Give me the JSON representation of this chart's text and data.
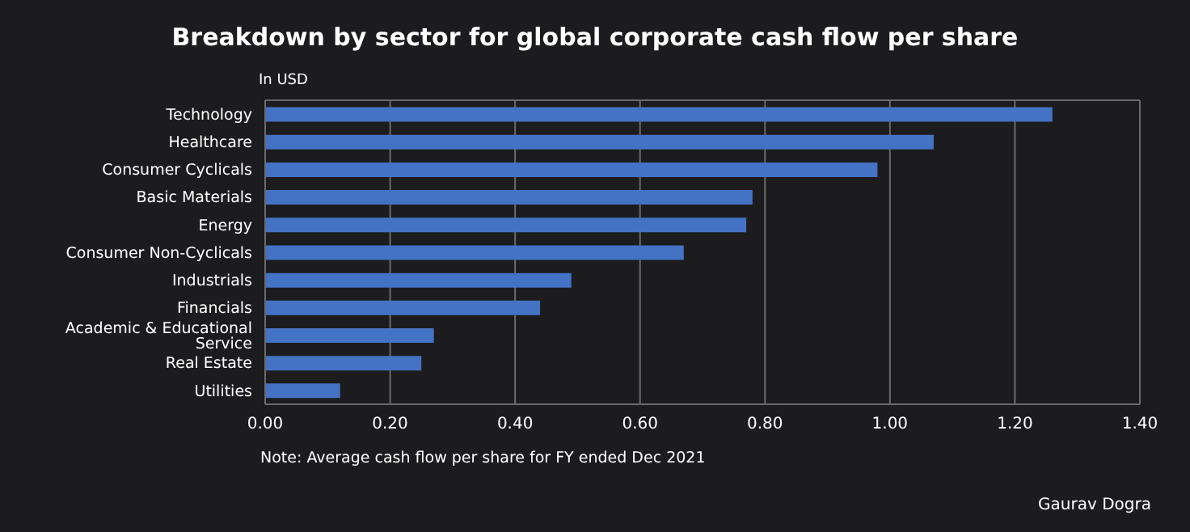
{
  "chart_data": {
    "type": "bar",
    "orientation": "horizontal",
    "title": "Breakdown by sector for global corporate cash flow per share",
    "subtitle": "In USD",
    "categories": [
      "Technology",
      "Healthcare",
      "Consumer Cyclicals",
      "Basic Materials",
      "Energy",
      "Consumer Non-Cyclicals",
      "Industrials",
      "Financials",
      "Academic & Educational Service",
      "Real Estate",
      "Utilities"
    ],
    "values": [
      1.26,
      1.07,
      0.98,
      0.78,
      0.77,
      0.67,
      0.49,
      0.44,
      0.27,
      0.25,
      0.12
    ],
    "color": "#4472c4",
    "xlim": [
      0,
      1.4
    ],
    "xticks": [
      {
        "value": 0,
        "label": "0.00"
      },
      {
        "value": 0.2,
        "label": "0.20"
      },
      {
        "value": 0.4,
        "label": "0.40"
      },
      {
        "value": 0.6,
        "label": "0.60"
      },
      {
        "value": 0.8,
        "label": "0.80"
      },
      {
        "value": 1,
        "label": "1.00"
      },
      {
        "value": 1.2,
        "label": "1.20"
      },
      {
        "value": 1.4,
        "label": "1.40"
      }
    ],
    "grid": "x",
    "legend": false,
    "annotations": [
      "Note: Average cash flow per share for FY ended Dec 2021",
      "Gaurav Dogra"
    ]
  }
}
